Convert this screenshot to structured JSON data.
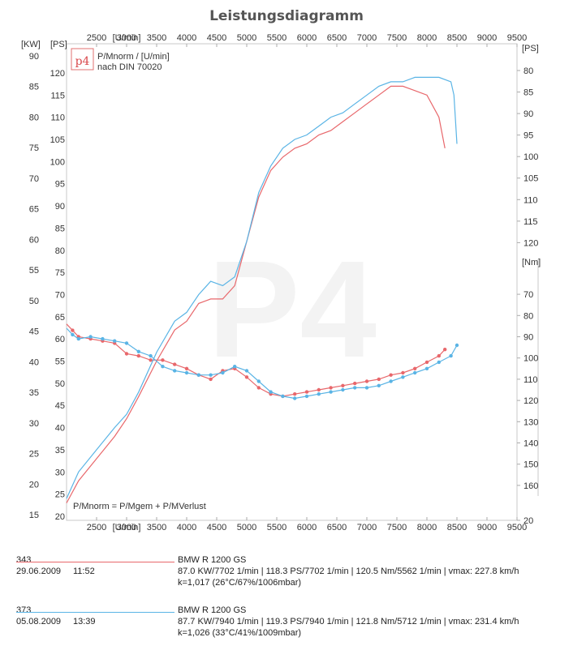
{
  "chart_data": {
    "type": "line",
    "title": "Leistungsdiagramm",
    "x_unit": "[U/min]",
    "x_ticks": [
      2500,
      3000,
      3500,
      4000,
      4500,
      5000,
      5500,
      6000,
      6500,
      7000,
      7500,
      8000,
      8500,
      9000,
      9500
    ],
    "xlim": [
      2000,
      9500
    ],
    "left_axes": {
      "kw": {
        "label": "[KW]",
        "ylim": [
          15,
          90
        ],
        "ticks": [
          15,
          20,
          25,
          30,
          35,
          40,
          45,
          50,
          55,
          60,
          65,
          70,
          75,
          80,
          85,
          90
        ]
      },
      "ps": {
        "label": "[PS]",
        "ylim": [
          20,
          122
        ],
        "ticks": [
          20,
          25,
          30,
          35,
          40,
          45,
          50,
          55,
          60,
          65,
          70,
          75,
          80,
          85,
          90,
          95,
          100,
          105,
          110,
          115,
          120
        ]
      }
    },
    "right_axes": {
      "ps": {
        "label": "[PS]",
        "ylim": [
          80,
          122
        ],
        "ticks": [
          80,
          85,
          90,
          95,
          100,
          105,
          110,
          115,
          120
        ]
      },
      "nm": {
        "label": "[Nm]",
        "ylim": [
          20,
          165
        ],
        "ticks": [
          20,
          70,
          80,
          90,
          100,
          110,
          120,
          130,
          140,
          150,
          160
        ]
      }
    },
    "legend_box": {
      "logo": "p4",
      "line1": "P/Mnorm / [U/min]",
      "line2": "nach DIN 70020"
    },
    "formula": "P/Mnorm = P/Mgem + P/MVerlust",
    "series": [
      {
        "name": "343",
        "color": "#e8676b",
        "power_ps": {
          "x": [
            2000,
            2200,
            2500,
            2800,
            3000,
            3200,
            3500,
            3800,
            4000,
            4200,
            4400,
            4600,
            4800,
            5000,
            5200,
            5400,
            5600,
            5800,
            6000,
            6200,
            6400,
            6600,
            6800,
            7000,
            7200,
            7400,
            7600,
            7800,
            8000,
            8200,
            8300
          ],
          "y": [
            23,
            28,
            33,
            38,
            42,
            47,
            55,
            62,
            64,
            68,
            69,
            69,
            72,
            82,
            92,
            98,
            101,
            103,
            104,
            106,
            107,
            109,
            111,
            113,
            115,
            117,
            117,
            116,
            115,
            110,
            103
          ]
        },
        "torque_nm": {
          "x": [
            2000,
            2100,
            2200,
            2400,
            2600,
            2800,
            3000,
            3200,
            3400,
            3600,
            3800,
            4000,
            4200,
            4400,
            4600,
            4800,
            5000,
            5200,
            5400,
            5600,
            5800,
            6000,
            6200,
            6400,
            6600,
            6800,
            7000,
            7200,
            7400,
            7600,
            7800,
            8000,
            8200,
            8300
          ],
          "y": [
            84,
            87,
            90,
            91,
            92,
            93,
            98,
            99,
            101,
            101,
            103,
            105,
            108,
            110,
            106,
            105,
            109,
            114,
            117,
            118,
            117,
            116,
            115,
            114,
            113,
            112,
            111,
            110,
            108,
            107,
            105,
            102,
            99,
            96
          ]
        }
      },
      {
        "name": "373",
        "color": "#5ab4e5",
        "power_ps": {
          "x": [
            2000,
            2200,
            2500,
            2800,
            3000,
            3200,
            3500,
            3800,
            4000,
            4200,
            4400,
            4600,
            4800,
            5000,
            5200,
            5400,
            5600,
            5800,
            6000,
            6200,
            6400,
            6600,
            6800,
            7000,
            7200,
            7400,
            7600,
            7800,
            8000,
            8200,
            8400,
            8450,
            8500
          ],
          "y": [
            24,
            30,
            35,
            40,
            43,
            48,
            57,
            64,
            66,
            70,
            73,
            72,
            74,
            82,
            93,
            99,
            103,
            105,
            106,
            108,
            110,
            111,
            113,
            115,
            117,
            118,
            118,
            119,
            119,
            119,
            118,
            115,
            104
          ]
        },
        "torque_nm": {
          "x": [
            2000,
            2100,
            2200,
            2400,
            2600,
            2800,
            3000,
            3200,
            3400,
            3600,
            3800,
            4000,
            4200,
            4400,
            4600,
            4800,
            5000,
            5200,
            5400,
            5600,
            5800,
            6000,
            6200,
            6400,
            6600,
            6800,
            7000,
            7200,
            7400,
            7600,
            7800,
            8000,
            8200,
            8400,
            8500
          ],
          "y": [
            86,
            89,
            91,
            90,
            91,
            92,
            93,
            97,
            99,
            104,
            106,
            107,
            108,
            108,
            107,
            104,
            106,
            111,
            116,
            118,
            119,
            118,
            117,
            116,
            115,
            114,
            114,
            113,
            111,
            109,
            107,
            105,
            102,
            99,
            94
          ]
        }
      }
    ]
  },
  "runs": [
    {
      "id": "343",
      "date": "29.06.2009",
      "time": "11:52",
      "model": "BMW R 1200 GS",
      "stats": "87.0 KW/7702 1/min  |  118.3 PS/7702 1/min  |  120.5 Nm/5562 1/min | vmax: 227.8 km/h",
      "conditions": "k=1,017 (26°C/67%/1006mbar)",
      "color": "#e8676b"
    },
    {
      "id": "373",
      "date": "05.08.2009",
      "time": "13:39",
      "model": "BMW R 1200 GS",
      "stats": "87.7 KW/7940 1/min  |  119.3 PS/7940 1/min  |  121.8 Nm/5712 1/min | vmax: 231.4 km/h",
      "conditions": "k=1,026 (33°C/41%/1009mbar)",
      "color": "#5ab4e5"
    }
  ]
}
